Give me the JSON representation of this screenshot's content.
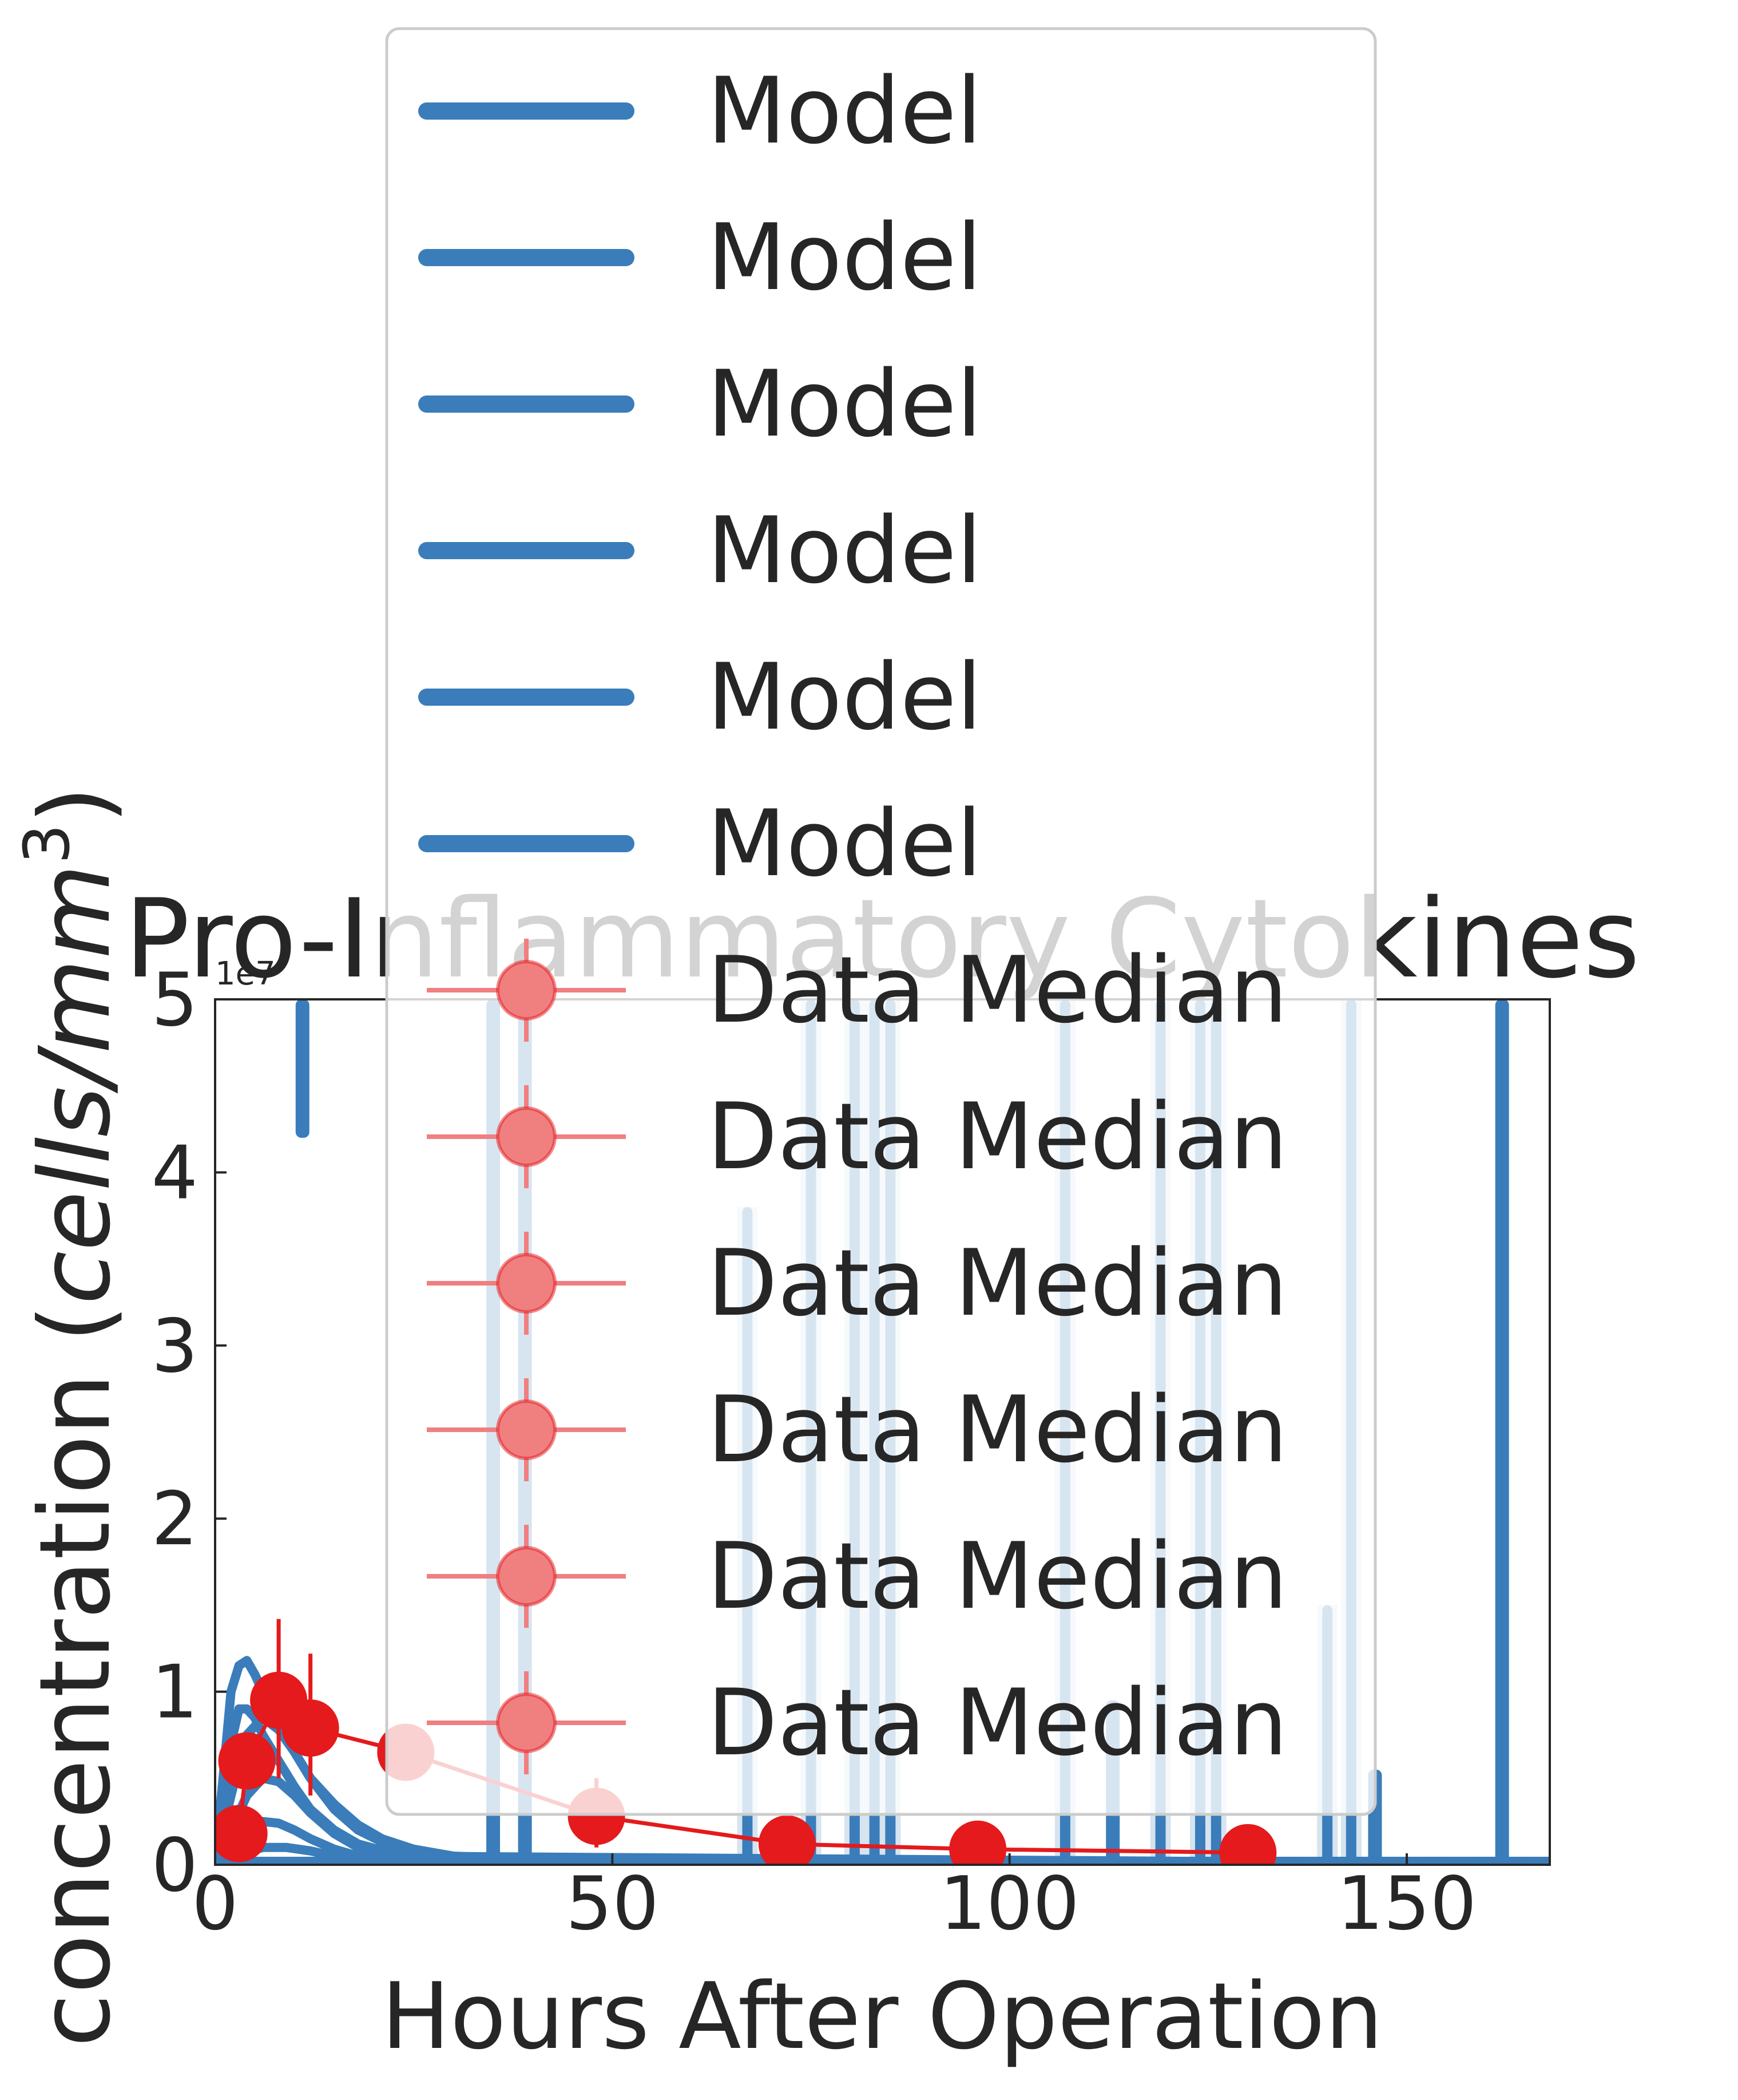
{
  "chart_data": {
    "type": "line",
    "title": "Pro-Inflammatory Cytokines",
    "xlabel": "Hours After Operation",
    "ylabel_text": "concentration (",
    "ylabel_units_italic": "cells/mm",
    "ylabel_units_sup": "3",
    "ylabel_close": ")",
    "offset_text": "1e7",
    "xlim": [
      0,
      168
    ],
    "ylim": [
      0,
      50000000
    ],
    "xticks": [
      0,
      50,
      100,
      150
    ],
    "xtick_labels": [
      "0",
      "50",
      "100",
      "150"
    ],
    "yticks": [
      0,
      10000000,
      20000000,
      30000000,
      40000000,
      50000000
    ],
    "ytick_labels": [
      "0",
      "1",
      "2",
      "3",
      "4",
      "5"
    ],
    "grid": false,
    "legend_placement": "upper center",
    "legend_entries": [
      "Model",
      "Model",
      "Model",
      "Model",
      "Model",
      "Model",
      "Data Median",
      "Data Median",
      "Data Median",
      "Data Median",
      "Data Median",
      "Data Median"
    ],
    "colors": {
      "model": "#3a7dba",
      "model_band": "#d6e4f0",
      "data": "#e41a1c",
      "data_light": "#f07f80",
      "axis": "#262626",
      "legend_border": "#cccccc"
    },
    "model_series": [
      {
        "x": [
          0,
          1,
          2,
          3,
          4,
          5,
          6,
          7,
          8,
          10,
          12,
          15,
          18,
          21,
          25,
          30,
          40,
          60,
          100,
          168
        ],
        "y": [
          300000,
          5000000,
          10000000,
          11500000,
          11800000,
          11000000,
          10000000,
          9000000,
          8000000,
          6500000,
          5000000,
          3500000,
          2300000,
          1500000,
          900000,
          500000,
          300000,
          200000,
          150000,
          120000
        ]
      },
      {
        "x": [
          0,
          1,
          2,
          3,
          4,
          5,
          6,
          8,
          10,
          12,
          15,
          18,
          22,
          26,
          30,
          40,
          168
        ],
        "y": [
          200000,
          3000000,
          7000000,
          9000000,
          9000000,
          8500000,
          7500000,
          6000000,
          4500000,
          3200000,
          2000000,
          1200000,
          700000,
          400000,
          250000,
          150000,
          100000
        ]
      },
      {
        "x": [
          0,
          2,
          4,
          6,
          8,
          10,
          12,
          15,
          18,
          22,
          26,
          30,
          168
        ],
        "y": [
          150000,
          4000000,
          7500000,
          8500000,
          7800000,
          6500000,
          5000000,
          3200000,
          2000000,
          1100000,
          600000,
          300000,
          80000
        ]
      },
      {
        "x": [
          0,
          2,
          4,
          6,
          8,
          10,
          12,
          15,
          18,
          22,
          168
        ],
        "y": [
          100000,
          2000000,
          4000000,
          5000000,
          4800000,
          4000000,
          3000000,
          1800000,
          1000000,
          500000,
          60000
        ]
      },
      {
        "x": [
          0,
          2,
          4,
          6,
          8,
          10,
          12,
          15,
          18,
          168
        ],
        "y": [
          80000,
          1000000,
          2000000,
          2500000,
          2400000,
          2000000,
          1500000,
          900000,
          500000,
          40000
        ]
      },
      {
        "x": [
          0,
          3,
          6,
          9,
          12,
          15,
          18,
          22,
          168
        ],
        "y": [
          50000,
          600000,
          1000000,
          1000000,
          800000,
          500000,
          300000,
          150000,
          30000
        ]
      }
    ],
    "model_spikes": [
      {
        "x": 11,
        "y_low": 42000000,
        "y_high": 50000000,
        "band": false
      },
      {
        "x": 35,
        "y_low": 0,
        "y_high": 50000000,
        "band": false
      },
      {
        "x": 39,
        "y_low": 0,
        "y_high": 50000000,
        "band": false
      },
      {
        "x": 67,
        "y_low": 0,
        "y_high": 38000000,
        "band": true
      },
      {
        "x": 75,
        "y_low": 0,
        "y_high": 50000000,
        "band": true
      },
      {
        "x": 80.5,
        "y_low": 0,
        "y_high": 50000000,
        "band": true
      },
      {
        "x": 83,
        "y_low": 0,
        "y_high": 50000000,
        "band": true
      },
      {
        "x": 85,
        "y_low": 0,
        "y_high": 50000000,
        "band": true
      },
      {
        "x": 107,
        "y_low": 0,
        "y_high": 50000000,
        "band": true
      },
      {
        "x": 113,
        "y_low": 0,
        "y_high": 9500000,
        "band": false
      },
      {
        "x": 119,
        "y_low": 0,
        "y_high": 50000000,
        "band": true
      },
      {
        "x": 124,
        "y_low": 0,
        "y_high": 50000000,
        "band": true
      },
      {
        "x": 126,
        "y_low": 0,
        "y_high": 50000000,
        "band": true
      },
      {
        "x": 140,
        "y_low": 0,
        "y_high": 15000000,
        "band": true
      },
      {
        "x": 143,
        "y_low": 0,
        "y_high": 50000000,
        "band": true
      },
      {
        "x": 146,
        "y_low": 0,
        "y_high": 5500000,
        "band": false
      },
      {
        "x": 162,
        "y_low": 0,
        "y_high": 50000000,
        "band": false
      }
    ],
    "data_median": {
      "x": [
        3,
        4,
        8,
        12,
        24,
        48,
        72,
        96,
        130
      ],
      "y": [
        1800000,
        6000000,
        9500000,
        7900000,
        6500000,
        2800000,
        1200000,
        900000,
        700000
      ],
      "err_low": [
        0,
        0,
        5000000,
        4000000,
        0,
        1000000,
        0,
        0,
        0
      ],
      "err_high": [
        0,
        0,
        14200000,
        12200000,
        0,
        5000000,
        0,
        0,
        0
      ]
    }
  }
}
